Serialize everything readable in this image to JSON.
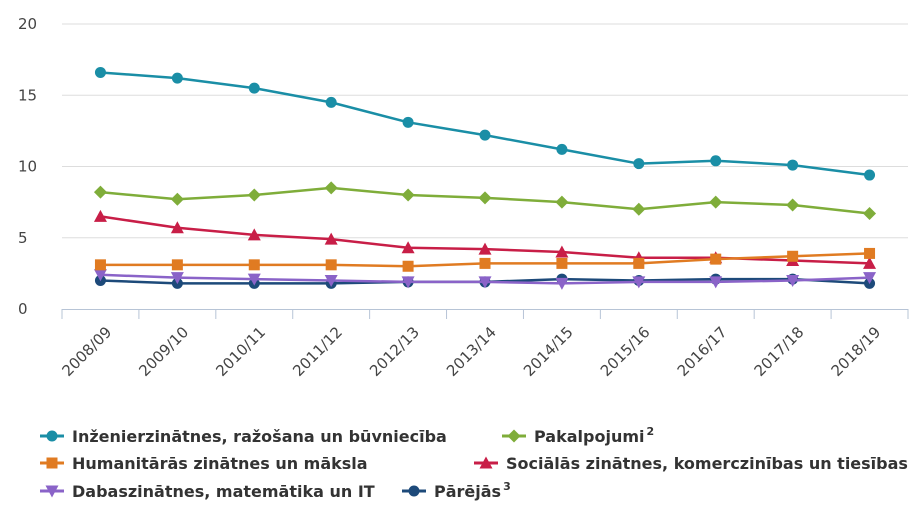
{
  "chart_data": {
    "type": "line",
    "categories": [
      "2008/09",
      "2009/10",
      "2010/11",
      "2011/12",
      "2012/13",
      "2013/14",
      "2014/15",
      "2015/16",
      "2016/17",
      "2017/18",
      "2018/19"
    ],
    "ylim": [
      0,
      20
    ],
    "yticks": [
      0,
      5,
      10,
      15,
      20
    ],
    "grid": true,
    "legend_position": "bottom",
    "series": [
      {
        "name": "Inženierzinātnes, ražošana un būvniecība",
        "sup": "",
        "color": "#1a8ea6",
        "marker": "circle",
        "values": [
          16.6,
          16.2,
          15.5,
          14.5,
          13.1,
          12.2,
          11.2,
          10.2,
          10.4,
          10.1,
          9.4
        ]
      },
      {
        "name": "Pakalpojumi",
        "sup": "2",
        "color": "#7fad3a",
        "marker": "diamond",
        "values": [
          8.2,
          7.7,
          8.0,
          8.5,
          8.0,
          7.8,
          7.5,
          7.0,
          7.5,
          7.3,
          6.7
        ]
      },
      {
        "name": "Humanitārās zinātnes un māksla",
        "sup": "",
        "color": "#e07b22",
        "marker": "square",
        "values": [
          3.1,
          3.1,
          3.1,
          3.1,
          3.0,
          3.2,
          3.2,
          3.2,
          3.5,
          3.7,
          3.9
        ]
      },
      {
        "name": "Sociālās zinātnes, komerczinības un tiesības",
        "sup": "",
        "color": "#c81e47",
        "marker": "triangle",
        "values": [
          6.5,
          5.7,
          5.2,
          4.9,
          4.3,
          4.2,
          4.0,
          3.6,
          3.6,
          3.4,
          3.2
        ]
      },
      {
        "name": "Dabaszinātnes, matemātika un IT",
        "sup": "",
        "color": "#8a63c8",
        "marker": "triangle-down",
        "values": [
          2.4,
          2.2,
          2.1,
          2.0,
          1.9,
          1.9,
          1.8,
          1.9,
          1.9,
          2.0,
          2.2
        ]
      },
      {
        "name": "Pārējās",
        "sup": "3",
        "color": "#1d4a7a",
        "marker": "circle",
        "values": [
          2.0,
          1.8,
          1.8,
          1.8,
          1.9,
          1.9,
          2.1,
          2.0,
          2.1,
          2.1,
          1.8
        ]
      }
    ]
  }
}
